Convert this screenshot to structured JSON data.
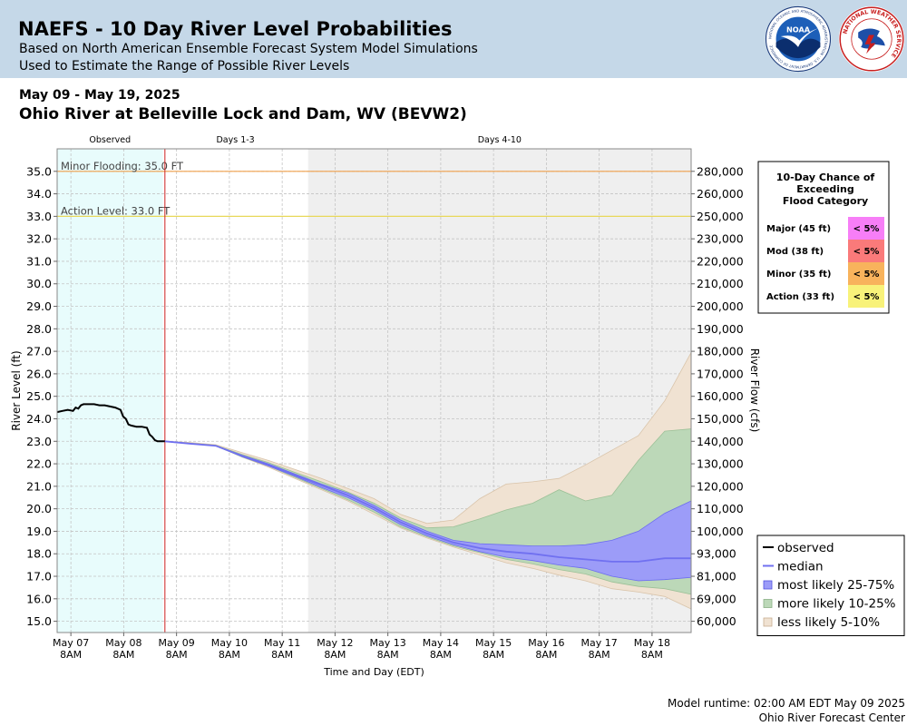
{
  "header": {
    "title": "NAEFS - 10 Day River Level Probabilities",
    "subtitle_1": "Based on North American Ensemble Forecast System Model Simulations",
    "subtitle_2": "Used to Estimate the Range of Possible River Levels",
    "bg_color": "#c5d8e8",
    "logo_1": {
      "text": "NOAA",
      "ring_text": "NATIONAL OCEANIC AND ATMOSPHERIC ADMINISTRATION · U.S. DEPARTMENT OF COMMERCE",
      "icon": "noaa-logo"
    },
    "logo_2": {
      "ring_text": "NATIONAL WEATHER SERVICE",
      "icon": "nws-logo"
    }
  },
  "date_range": "May 09 - May 19, 2025",
  "location": "Ohio River at Belleville Lock and Dam, WV (BEVW2)",
  "footer": {
    "runtime": "Model runtime: 02:00 AM EDT May 09 2025",
    "center": "Ohio River Forecast Center"
  },
  "chart_data": {
    "type": "area",
    "sections": [
      {
        "label": "Observed",
        "start": 0,
        "end": 2,
        "color": "#e8fcfc"
      },
      {
        "label": "Days 1-3",
        "start": 2,
        "end": 4.75,
        "color": "#ffffff"
      },
      {
        "label": "Days 4-10",
        "start": 4.75,
        "end": 12,
        "color": "#efefef"
      }
    ],
    "forecast_start_day": 2.04,
    "x_start": "May 06 2025 8AM",
    "xlim": [
      0,
      12
    ],
    "x_ticks": [
      {
        "day": 0.26,
        "label1": "May 07",
        "label2": "8AM"
      },
      {
        "day": 1.26,
        "label1": "May 08",
        "label2": "8AM"
      },
      {
        "day": 2.26,
        "label1": "May 09",
        "label2": "8AM"
      },
      {
        "day": 3.26,
        "label1": "May 10",
        "label2": "8AM"
      },
      {
        "day": 4.26,
        "label1": "May 11",
        "label2": "8AM"
      },
      {
        "day": 5.26,
        "label1": "May 12",
        "label2": "8AM"
      },
      {
        "day": 6.26,
        "label1": "May 13",
        "label2": "8AM"
      },
      {
        "day": 7.26,
        "label1": "May 14",
        "label2": "8AM"
      },
      {
        "day": 8.26,
        "label1": "May 15",
        "label2": "8AM"
      },
      {
        "day": 9.26,
        "label1": "May 16",
        "label2": "8AM"
      },
      {
        "day": 10.26,
        "label1": "May 17",
        "label2": "8AM"
      },
      {
        "day": 11.26,
        "label1": "May 18",
        "label2": "8AM"
      }
    ],
    "xlabel": "Time and Day (EDT)",
    "ylabel": "River Level (ft)",
    "ylabel_right": "River Flow (cfs)",
    "ylim": [
      14.5,
      36
    ],
    "y_ticks": [
      "15.0",
      "16.0",
      "17.0",
      "18.0",
      "19.0",
      "20.0",
      "21.0",
      "22.0",
      "23.0",
      "24.0",
      "25.0",
      "26.0",
      "27.0",
      "28.0",
      "29.0",
      "30.0",
      "31.0",
      "32.0",
      "33.0",
      "34.0",
      "35.0"
    ],
    "y_ticks_right": [
      {
        "stage": 15,
        "label": "60,000"
      },
      {
        "stage": 16,
        "label": "69,000"
      },
      {
        "stage": 17,
        "label": "81,000"
      },
      {
        "stage": 18,
        "label": "93,000"
      },
      {
        "stage": 19,
        "label": "100,000"
      },
      {
        "stage": 20,
        "label": "110,000"
      },
      {
        "stage": 21,
        "label": "120,000"
      },
      {
        "stage": 22,
        "label": "130,000"
      },
      {
        "stage": 23,
        "label": "140,000"
      },
      {
        "stage": 24,
        "label": "150,000"
      },
      {
        "stage": 25,
        "label": "160,000"
      },
      {
        "stage": 26,
        "label": "170,000"
      },
      {
        "stage": 27,
        "label": "180,000"
      },
      {
        "stage": 28,
        "label": "190,000"
      },
      {
        "stage": 29,
        "label": "200,000"
      },
      {
        "stage": 30,
        "label": "210,000"
      },
      {
        "stage": 31,
        "label": "220,000"
      },
      {
        "stage": 32,
        "label": "230,000"
      },
      {
        "stage": 33,
        "label": "250,000"
      },
      {
        "stage": 34,
        "label": "260,000"
      },
      {
        "stage": 35,
        "label": "280,000"
      }
    ],
    "thresholds": [
      {
        "label": "Minor Flooding: 35.0 FT",
        "value": 35.0,
        "color": "#f0a04b"
      },
      {
        "label": "Action Level: 33.0 FT",
        "value": 33.0,
        "color": "#e8d85a"
      }
    ],
    "observed": {
      "x": [
        0,
        0.1,
        0.2,
        0.3,
        0.35,
        0.4,
        0.45,
        0.5,
        0.6,
        0.7,
        0.8,
        0.9,
        1.0,
        1.1,
        1.2,
        1.25,
        1.3,
        1.35,
        1.4,
        1.5,
        1.6,
        1.7,
        1.75,
        1.8,
        1.85,
        1.9,
        2.0,
        2.04
      ],
      "y": [
        24.3,
        24.35,
        24.4,
        24.35,
        24.5,
        24.45,
        24.6,
        24.65,
        24.65,
        24.65,
        24.6,
        24.6,
        24.55,
        24.5,
        24.4,
        24.1,
        24.0,
        23.75,
        23.7,
        23.65,
        23.65,
        23.6,
        23.3,
        23.2,
        23.05,
        23.0,
        23.0,
        23.0
      ]
    },
    "series_x": [
      2.04,
      2.5,
      3.0,
      3.5,
      4.0,
      4.5,
      5.0,
      5.5,
      6.0,
      6.5,
      7.0,
      7.5,
      8.0,
      8.5,
      9.0,
      9.5,
      10.0,
      10.5,
      11.0,
      11.5,
      12.0
    ],
    "median": [
      23.0,
      22.9,
      22.8,
      22.35,
      21.95,
      21.5,
      21.05,
      20.6,
      20.05,
      19.4,
      18.9,
      18.5,
      18.25,
      18.1,
      18.0,
      17.85,
      17.75,
      17.65,
      17.65,
      17.8,
      17.8
    ],
    "bands": [
      {
        "name": "less likely 5-10%",
        "color": "#f0e2d2",
        "edge": "#d9c4aa",
        "upper": [
          23.0,
          22.95,
          22.85,
          22.5,
          22.15,
          21.75,
          21.35,
          20.9,
          20.45,
          19.75,
          19.35,
          19.5,
          20.45,
          21.1,
          21.2,
          21.35,
          21.95,
          22.6,
          23.25,
          24.8,
          26.95
        ],
        "lower": [
          23.0,
          22.9,
          22.8,
          22.3,
          21.85,
          21.35,
          20.85,
          20.35,
          19.75,
          19.15,
          18.7,
          18.3,
          17.95,
          17.6,
          17.35,
          17.05,
          16.8,
          16.45,
          16.3,
          16.1,
          15.55
        ]
      },
      {
        "name": "more likely 10-25%",
        "color": "#bcd8b8",
        "edge": "#9cc097",
        "upper": [
          23.0,
          22.92,
          22.82,
          22.42,
          22.05,
          21.62,
          21.2,
          20.75,
          20.25,
          19.6,
          19.15,
          19.2,
          19.55,
          19.95,
          20.25,
          20.85,
          20.35,
          20.6,
          22.15,
          23.45,
          23.55
        ],
        "lower": [
          23.0,
          22.9,
          22.8,
          22.3,
          21.9,
          21.4,
          20.9,
          20.4,
          19.85,
          19.2,
          18.75,
          18.35,
          18.05,
          17.75,
          17.55,
          17.3,
          17.1,
          16.75,
          16.55,
          16.45,
          16.2
        ]
      },
      {
        "name": "most likely 25-75%",
        "color": "#9c9cf8",
        "edge": "#6b6bf0",
        "upper": [
          23.0,
          22.9,
          22.8,
          22.38,
          22.0,
          21.55,
          21.1,
          20.7,
          20.15,
          19.5,
          19.0,
          18.6,
          18.45,
          18.4,
          18.35,
          18.35,
          18.4,
          18.6,
          19.0,
          19.8,
          20.35
        ],
        "lower": [
          23.0,
          22.9,
          22.8,
          22.32,
          21.9,
          21.45,
          20.95,
          20.5,
          19.95,
          19.3,
          18.8,
          18.4,
          18.1,
          17.85,
          17.7,
          17.5,
          17.35,
          17.0,
          16.8,
          16.85,
          16.95
        ]
      }
    ],
    "legend": [
      {
        "key": "observed",
        "label": "observed",
        "kind": "line",
        "color": "#000000"
      },
      {
        "key": "median",
        "label": "median",
        "kind": "line",
        "color": "#7070f0"
      },
      {
        "key": "most",
        "label": "most likely 25-75%",
        "kind": "box",
        "color": "#9c9cf8",
        "edge": "#5050e0"
      },
      {
        "key": "more",
        "label": "more likely 10-25%",
        "kind": "box",
        "color": "#bcd8b8",
        "edge": "#8ab085"
      },
      {
        "key": "less",
        "label": "less likely 5-10%",
        "kind": "box",
        "color": "#f0e2d2",
        "edge": "#c8ae90"
      }
    ],
    "flood_table": {
      "title": [
        "10-Day Chance of",
        "Exceeding",
        "Flood Category"
      ],
      "rows": [
        {
          "category": "Major (45 ft)",
          "chance": "< 5%",
          "color": "#f77ef7"
        },
        {
          "category": "Mod (38 ft)",
          "chance": "< 5%",
          "color": "#fa7a7a"
        },
        {
          "category": "Minor (35 ft)",
          "chance": "< 5%",
          "color": "#f8b35c"
        },
        {
          "category": "Action (33 ft)",
          "chance": "< 5%",
          "color": "#f8f27a"
        }
      ]
    }
  }
}
